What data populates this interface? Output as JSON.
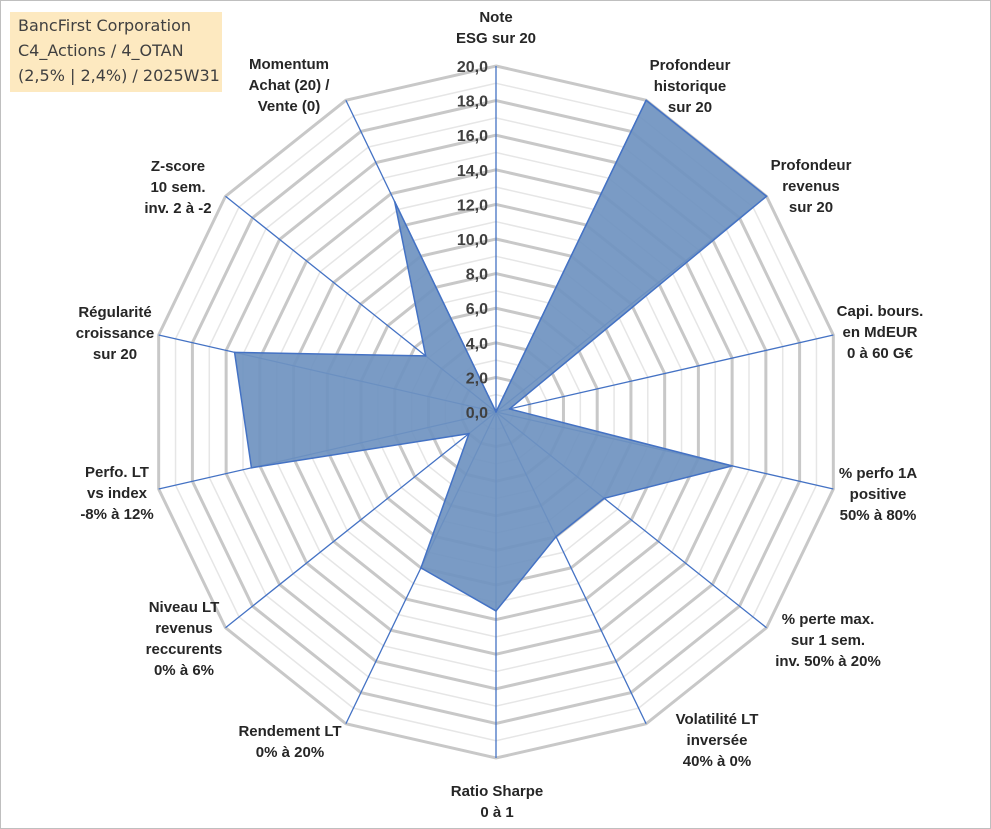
{
  "chart_data": {
    "type": "radar",
    "title_lines": [
      "BancFirst Corporation",
      "C4_Actions / 4_OTAN",
      "(2,5% | 2,4%) / 2025W31"
    ],
    "axes": [
      {
        "label": [
          "Note",
          "ESG sur 20"
        ]
      },
      {
        "label": [
          "Profondeur",
          "historique",
          "sur 20"
        ]
      },
      {
        "label": [
          "Profondeur",
          "revenus",
          "sur 20"
        ]
      },
      {
        "label": [
          "Capi. bours.",
          "en MdEUR",
          "0 à 60 G€"
        ]
      },
      {
        "label": [
          "% perfo 1A",
          "positive",
          "50% à 80%"
        ]
      },
      {
        "label": [
          "% perte max.",
          "sur 1 sem.",
          "inv. 50% à 20%"
        ]
      },
      {
        "label": [
          "Volatilité LT",
          "inversée",
          "40% à 0%"
        ]
      },
      {
        "label": [
          "Ratio Sharpe",
          "0 à 1"
        ]
      },
      {
        "label": [
          "Rendement LT",
          "0% à 20%"
        ]
      },
      {
        "label": [
          "Niveau LT",
          "revenus",
          "reccurents",
          "0% à 6%"
        ]
      },
      {
        "label": [
          "Perfo. LT",
          "vs index",
          "-8% à 12%"
        ]
      },
      {
        "label": [
          "Régularité",
          "croissance",
          "sur 20"
        ]
      },
      {
        "label": [
          "Z-score",
          "10 sem.",
          "inv. 2 à -2"
        ]
      },
      {
        "label": [
          "Momentum",
          "Achat (20) /",
          "Vente (0)"
        ]
      }
    ],
    "series": [
      {
        "values": [
          0.0,
          20.0,
          20.0,
          0.8,
          14.0,
          8.0,
          8.0,
          11.5,
          10.0,
          2.0,
          14.5,
          15.5,
          5.2,
          13.5
        ]
      }
    ],
    "rmin": 0,
    "rmax": 20,
    "tick_step": 2,
    "tick_labels": [
      "0,0",
      "2,0",
      "4,0",
      "6,0",
      "8,0",
      "10,0",
      "12,0",
      "14,0",
      "16,0",
      "18,0",
      "20,0"
    ],
    "colors": {
      "fill": "#6f93c0",
      "stroke": "#4472c4",
      "spoke": "#4472c4",
      "major_grid": "#c8c8c8",
      "minor_grid": "#e6e6e6"
    }
  }
}
